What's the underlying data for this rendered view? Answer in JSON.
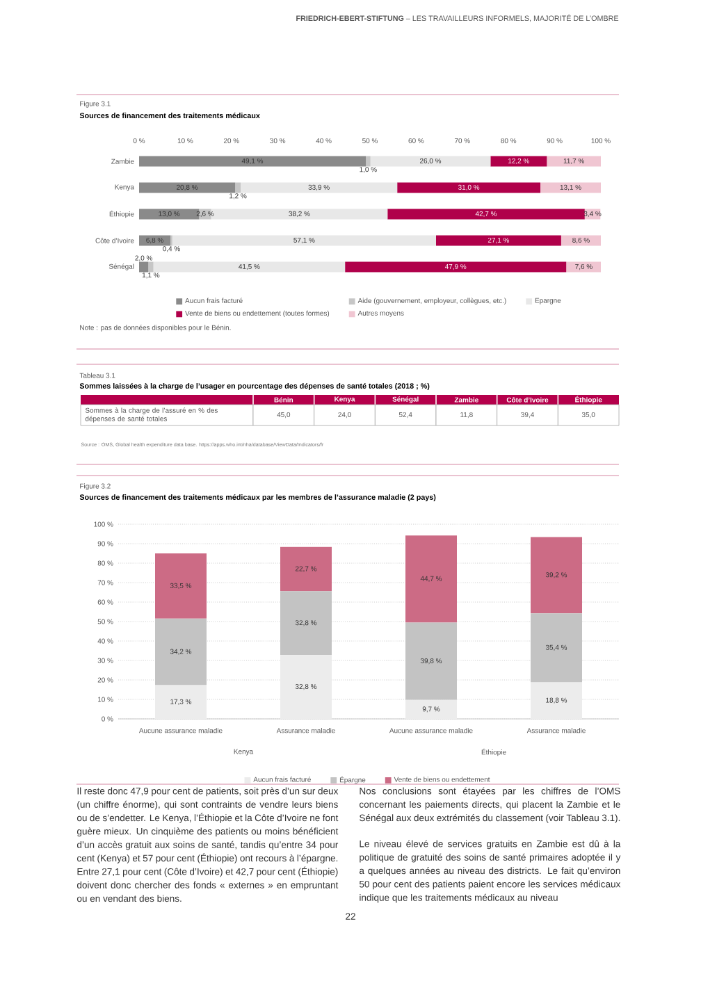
{
  "chart_data": [
    {
      "type": "other",
      "title": "**FRIEDRICH-EBERT-STIFTUNG** – LES TRAVAILLEURS INFORMELS, MAJORITÉ DE L’OMBRE"
    },
    {
      "type": "bar",
      "orientation": "horizontal",
      "stacked": true,
      "title": "Figure 3.1",
      "subtitle": "Sources de financement des traitements médicaux",
      "categories": [
        "Zambie",
        "Kenya",
        "Éthiopie",
        "Côte d’Ivoire",
        "Sénégal"
      ],
      "series": [
        {
          "name": "Aucun frais facturé",
          "color": "#8a8a8a",
          "values": [
            49.1,
            20.8,
            13.0,
            6.8,
            2.0
          ],
          "value_labels": [
            "49,1 %",
            "20,8 %",
            "13,0 %",
            "6,8 %",
            "2,0 %"
          ]
        },
        {
          "name": "Aide (gouvernement, employeur, collègues, etc.)",
          "color": "#c6c6c6",
          "values": [
            1.0,
            1.2,
            2.6,
            0.4,
            1.1
          ],
          "value_labels": [
            "1,0 %",
            "1,2 %",
            "2,6 %",
            "0,4 %",
            "1,1 %"
          ]
        },
        {
          "name": "Epargne",
          "color": "#e8e8e8",
          "values": [
            26.0,
            33.9,
            38.2,
            57.1,
            41.5
          ],
          "value_labels": [
            "26,0 %",
            "33,9 %",
            "38,2 %",
            "57,1 %",
            "41,5 %"
          ]
        },
        {
          "name": "Vente de biens ou endettement (toutes formes)",
          "color": "#b0004a",
          "values": [
            12.2,
            31.0,
            42.7,
            27.1,
            47.9
          ],
          "value_labels": [
            "12,2 %",
            "31,0 %",
            "42,7 %",
            "27,1 %",
            "47,9 %"
          ]
        },
        {
          "name": "Autres moyens",
          "color": "#f0c6d2",
          "values": [
            11.7,
            13.1,
            3.4,
            8.6,
            7.6
          ],
          "value_labels": [
            "11,7 %",
            "13,1 %",
            "3,4 %",
            "8,6 %",
            "7,6 %"
          ]
        }
      ],
      "xlim": [
        0,
        100
      ],
      "xticks": [
        {
          "value": 0,
          "label": "0 %"
        },
        {
          "value": 10,
          "label": "10 %"
        },
        {
          "value": 20,
          "label": "20 %"
        },
        {
          "value": 30,
          "label": "30 %"
        },
        {
          "value": 40,
          "label": "40 %"
        },
        {
          "value": 50,
          "label": "50 %"
        },
        {
          "value": 60,
          "label": "60 %"
        },
        {
          "value": 70,
          "label": "70 %"
        },
        {
          "value": 80,
          "label": "80 %"
        },
        {
          "value": 90,
          "label": "90 %"
        },
        {
          "value": 100,
          "label": "100 %"
        }
      ],
      "legend": "bottom",
      "annotations": [
        "Note : pas de données disponibles pour le Bénin."
      ]
    },
    {
      "type": "other",
      "title": "Tableau 3.1",
      "subtitle": "Sommes laissées à la charge de l’usager en pourcentage des dépenses de santé totales (2018 ; %)",
      "categories": [
        "Bénin",
        "Kenya",
        "Sénégal",
        "Zambie",
        "Côte d’Ivoire",
        "Éthiopie"
      ],
      "y_categories": [
        "Sommes à la charge de l’assuré en % des dépenses de santé totales"
      ],
      "cell_labels": [
        [
          "45,0",
          "24,0",
          "52,4",
          "11,8",
          "39,4",
          "35,0"
        ]
      ],
      "annotations": [
        "Source : OMS, Global health expenditure data base. https://apps.who.int/nha/database/ViewData/Indicators/fr"
      ]
    },
    {
      "type": "bar",
      "stacked": true,
      "title": "Figure 3.2",
      "subtitle": "Sources de financement des traitements médicaux par les membres de l’assurance maladie (2 pays)",
      "categories": [
        "Aucune assurance maladie",
        "Assurance maladie",
        "Aucune assurance maladie",
        "Assurance maladie"
      ],
      "series": [
        {
          "name": "Aucun frais facturé",
          "color": "#ececec",
          "values": [
            17.3,
            32.8,
            9.7,
            18.8
          ],
          "value_labels": [
            "17,3 %",
            "32,8 %",
            "9,7 %",
            "18,8 %"
          ]
        },
        {
          "name": "Épargne",
          "color": "#c3c3c3",
          "values": [
            34.2,
            32.8,
            39.8,
            35.4
          ],
          "value_labels": [
            "34,2 %",
            "32,8 %",
            "39,8 %",
            "35,4 %"
          ]
        },
        {
          "name": "Vente de biens ou endettement",
          "color": "#cc6b85",
          "values": [
            33.5,
            22.7,
            44.7,
            39.2
          ],
          "value_labels": [
            "33,5 %",
            "22,7 %",
            "44,7 %",
            "39,2 %"
          ]
        }
      ],
      "ylim": [
        0,
        100
      ],
      "yticks": [
        {
          "value": 0,
          "label": "0 %"
        },
        {
          "value": 10,
          "label": "10 %"
        },
        {
          "value": 20,
          "label": "20 %"
        },
        {
          "value": 30,
          "label": "30 %"
        },
        {
          "value": 40,
          "label": "40 %"
        },
        {
          "value": 50,
          "label": "50 %"
        },
        {
          "value": 60,
          "label": "60 %"
        },
        {
          "value": 70,
          "label": "70 %"
        },
        {
          "value": 80,
          "label": "80 %"
        },
        {
          "value": 90,
          "label": "90 %"
        },
        {
          "value": 100,
          "label": "100 %"
        }
      ],
      "grid": "y",
      "legend": "bottom",
      "annotations": [
        "Kenya",
        "Éthiopie"
      ]
    },
    {
      "type": "other",
      "annotations": [
        "Il reste donc 47,9 pour cent de patients, soit près d’un sur deux (un chiffre énorme), qui sont contraints de vendre leurs biens ou de s’endetter. Le Kenya, l’Éthiopie et la Côte d’Ivoire ne font guère mieux. Un cinquième des patients ou moins bénéficient d’un accès gratuit aux soins de santé, tandis qu’entre 34 pour cent (Kenya) et 57 pour cent (Éthiopie) ont recours à l’épargne. Entre 27,1 pour cent (Côte d’Ivoire) et 42,7 pour cent (Éthiopie) doivent donc chercher des fonds « externes » en empruntant ou en vendant des biens.",
        "Nos conclusions sont étayées par les chiffres de l’OMS concernant les paiements directs, qui placent la Zambie et le Sénégal aux deux extrémités du classement (voir Tableau 3.1).",
        "Le niveau élevé de services gratuits en Zambie est dû à la politique de gratuité des soins de santé primaires adoptée il y a quelques années au niveau des districts. Le fait qu’environ 50 pour cent des patients paient encore les services médicaux indique que les traitements médicaux au niveau",
        "22"
      ]
    }
  ]
}
